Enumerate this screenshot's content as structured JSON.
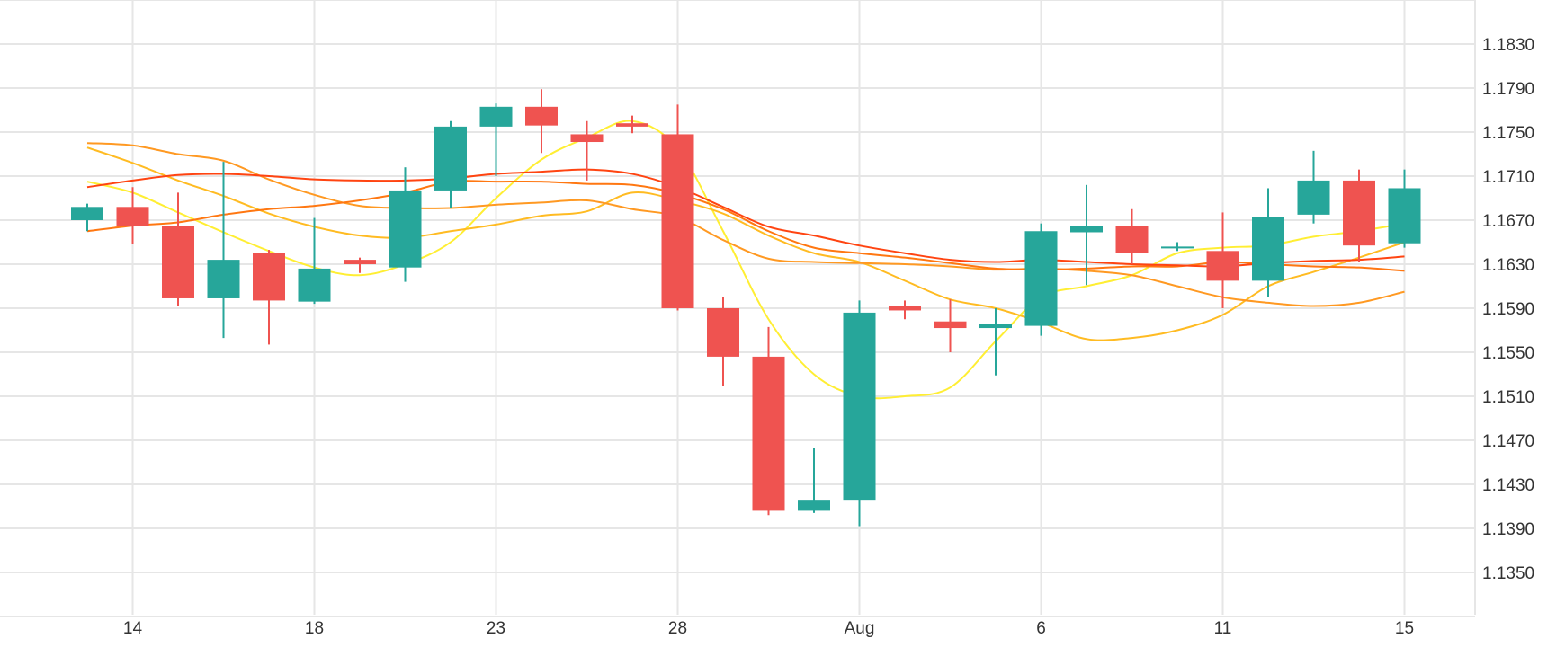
{
  "chart_data": {
    "type": "candlestick",
    "title": "",
    "xlabel": "",
    "ylabel": "",
    "ylim": [
      1.131,
      1.187
    ],
    "grid": true,
    "x_ticks": [
      {
        "index": 1,
        "label": "14"
      },
      {
        "index": 5,
        "label": "18"
      },
      {
        "index": 9,
        "label": "23"
      },
      {
        "index": 13,
        "label": "28"
      },
      {
        "index": 17,
        "label": "Aug"
      },
      {
        "index": 21,
        "label": "6"
      },
      {
        "index": 25,
        "label": "11"
      },
      {
        "index": 29,
        "label": "15"
      }
    ],
    "y_ticks": [
      "1.1830",
      "1.1790",
      "1.1750",
      "1.1710",
      "1.1670",
      "1.1630",
      "1.1590",
      "1.1550",
      "1.1510",
      "1.1470",
      "1.1430",
      "1.1390",
      "1.1350"
    ],
    "candles": [
      {
        "o": 1.167,
        "h": 1.1685,
        "l": 1.166,
        "c": 1.1682
      },
      {
        "o": 1.1682,
        "h": 1.17,
        "l": 1.1648,
        "c": 1.1665
      },
      {
        "o": 1.1665,
        "h": 1.1695,
        "l": 1.1592,
        "c": 1.1599
      },
      {
        "o": 1.1599,
        "h": 1.1723,
        "l": 1.1563,
        "c": 1.1634
      },
      {
        "o": 1.164,
        "h": 1.1643,
        "l": 1.1557,
        "c": 1.1597
      },
      {
        "o": 1.1596,
        "h": 1.1672,
        "l": 1.1594,
        "c": 1.1626
      },
      {
        "o": 1.1634,
        "h": 1.1636,
        "l": 1.1622,
        "c": 1.163
      },
      {
        "o": 1.1627,
        "h": 1.1718,
        "l": 1.1614,
        "c": 1.1697
      },
      {
        "o": 1.1697,
        "h": 1.176,
        "l": 1.1681,
        "c": 1.1755
      },
      {
        "o": 1.1755,
        "h": 1.1776,
        "l": 1.171,
        "c": 1.1773
      },
      {
        "o": 1.1773,
        "h": 1.1789,
        "l": 1.1731,
        "c": 1.1756
      },
      {
        "o": 1.1748,
        "h": 1.176,
        "l": 1.1706,
        "c": 1.1741
      },
      {
        "o": 1.1758,
        "h": 1.1765,
        "l": 1.1749,
        "c": 1.1755
      },
      {
        "o": 1.1748,
        "h": 1.1775,
        "l": 1.1588,
        "c": 1.159
      },
      {
        "o": 1.159,
        "h": 1.16,
        "l": 1.1519,
        "c": 1.1546
      },
      {
        "o": 1.1546,
        "h": 1.1573,
        "l": 1.1402,
        "c": 1.1406
      },
      {
        "o": 1.1406,
        "h": 1.1463,
        "l": 1.1404,
        "c": 1.1416
      },
      {
        "o": 1.1416,
        "h": 1.1597,
        "l": 1.1392,
        "c": 1.1586
      },
      {
        "o": 1.1592,
        "h": 1.1597,
        "l": 1.158,
        "c": 1.1588
      },
      {
        "o": 1.1578,
        "h": 1.1598,
        "l": 1.155,
        "c": 1.1572
      },
      {
        "o": 1.1572,
        "h": 1.159,
        "l": 1.1529,
        "c": 1.1576
      },
      {
        "o": 1.1574,
        "h": 1.1667,
        "l": 1.1565,
        "c": 1.166
      },
      {
        "o": 1.1659,
        "h": 1.1702,
        "l": 1.1611,
        "c": 1.1665
      },
      {
        "o": 1.1665,
        "h": 1.168,
        "l": 1.163,
        "c": 1.164
      },
      {
        "o": 1.1645,
        "h": 1.165,
        "l": 1.1642,
        "c": 1.1646
      },
      {
        "o": 1.1642,
        "h": 1.1677,
        "l": 1.159,
        "c": 1.1615
      },
      {
        "o": 1.1615,
        "h": 1.1699,
        "l": 1.16,
        "c": 1.1673
      },
      {
        "o": 1.1675,
        "h": 1.1733,
        "l": 1.1667,
        "c": 1.1706
      },
      {
        "o": 1.1706,
        "h": 1.1716,
        "l": 1.1632,
        "c": 1.1647
      },
      {
        "o": 1.1649,
        "h": 1.1716,
        "l": 1.1645,
        "c": 1.1699
      }
    ],
    "series": [
      {
        "color": "#ffee33",
        "values": [
          1.1705,
          1.1695,
          1.1677,
          1.1659,
          1.1642,
          1.1627,
          1.162,
          1.163,
          1.165,
          1.169,
          1.1725,
          1.1745,
          1.176,
          1.1735,
          1.166,
          1.158,
          1.153,
          1.151,
          1.151,
          1.1518,
          1.156,
          1.16,
          1.161,
          1.162,
          1.164,
          1.1645,
          1.1647,
          1.1655,
          1.166,
          1.1667
        ]
      },
      {
        "color": "#ffbb22",
        "values": [
          1.1736,
          1.1722,
          1.1706,
          1.1692,
          1.1676,
          1.1664,
          1.1656,
          1.1654,
          1.166,
          1.1666,
          1.1674,
          1.1678,
          1.1695,
          1.1688,
          1.1676,
          1.1656,
          1.164,
          1.1632,
          1.1615,
          1.1598,
          1.159,
          1.1577,
          1.1562,
          1.1563,
          1.157,
          1.1584,
          1.161,
          1.1623,
          1.1636,
          1.165
        ]
      },
      {
        "color": "#ff9922",
        "values": [
          1.174,
          1.1738,
          1.173,
          1.1724,
          1.1707,
          1.1693,
          1.1683,
          1.1681,
          1.1681,
          1.1684,
          1.1686,
          1.1688,
          1.168,
          1.1673,
          1.1652,
          1.1635,
          1.1632,
          1.1631,
          1.163,
          1.1628,
          1.1625,
          1.1626,
          1.1624,
          1.162,
          1.161,
          1.16,
          1.1595,
          1.1592,
          1.1595,
          1.1605
        ]
      },
      {
        "color": "#ff7711",
        "values": [
          1.166,
          1.1665,
          1.1668,
          1.1675,
          1.168,
          1.1683,
          1.1688,
          1.1695,
          1.1705,
          1.1705,
          1.1705,
          1.1703,
          1.1702,
          1.1694,
          1.168,
          1.166,
          1.1645,
          1.164,
          1.1636,
          1.1631,
          1.1626,
          1.1625,
          1.1626,
          1.1628,
          1.1628,
          1.1632,
          1.163,
          1.1628,
          1.1627,
          1.1624
        ]
      },
      {
        "color": "#ff4411",
        "values": [
          1.17,
          1.1706,
          1.1711,
          1.1712,
          1.171,
          1.1707,
          1.1706,
          1.1706,
          1.1708,
          1.1712,
          1.1714,
          1.1716,
          1.1712,
          1.17,
          1.1682,
          1.1664,
          1.1656,
          1.1647,
          1.164,
          1.1634,
          1.1632,
          1.1634,
          1.1632,
          1.163,
          1.1629,
          1.1628,
          1.1631,
          1.1633,
          1.1634,
          1.1637
        ]
      }
    ],
    "colors": {
      "up": "#26a69a",
      "down": "#ef5350",
      "grid": "#e6e6e6",
      "text": "#333333"
    }
  }
}
